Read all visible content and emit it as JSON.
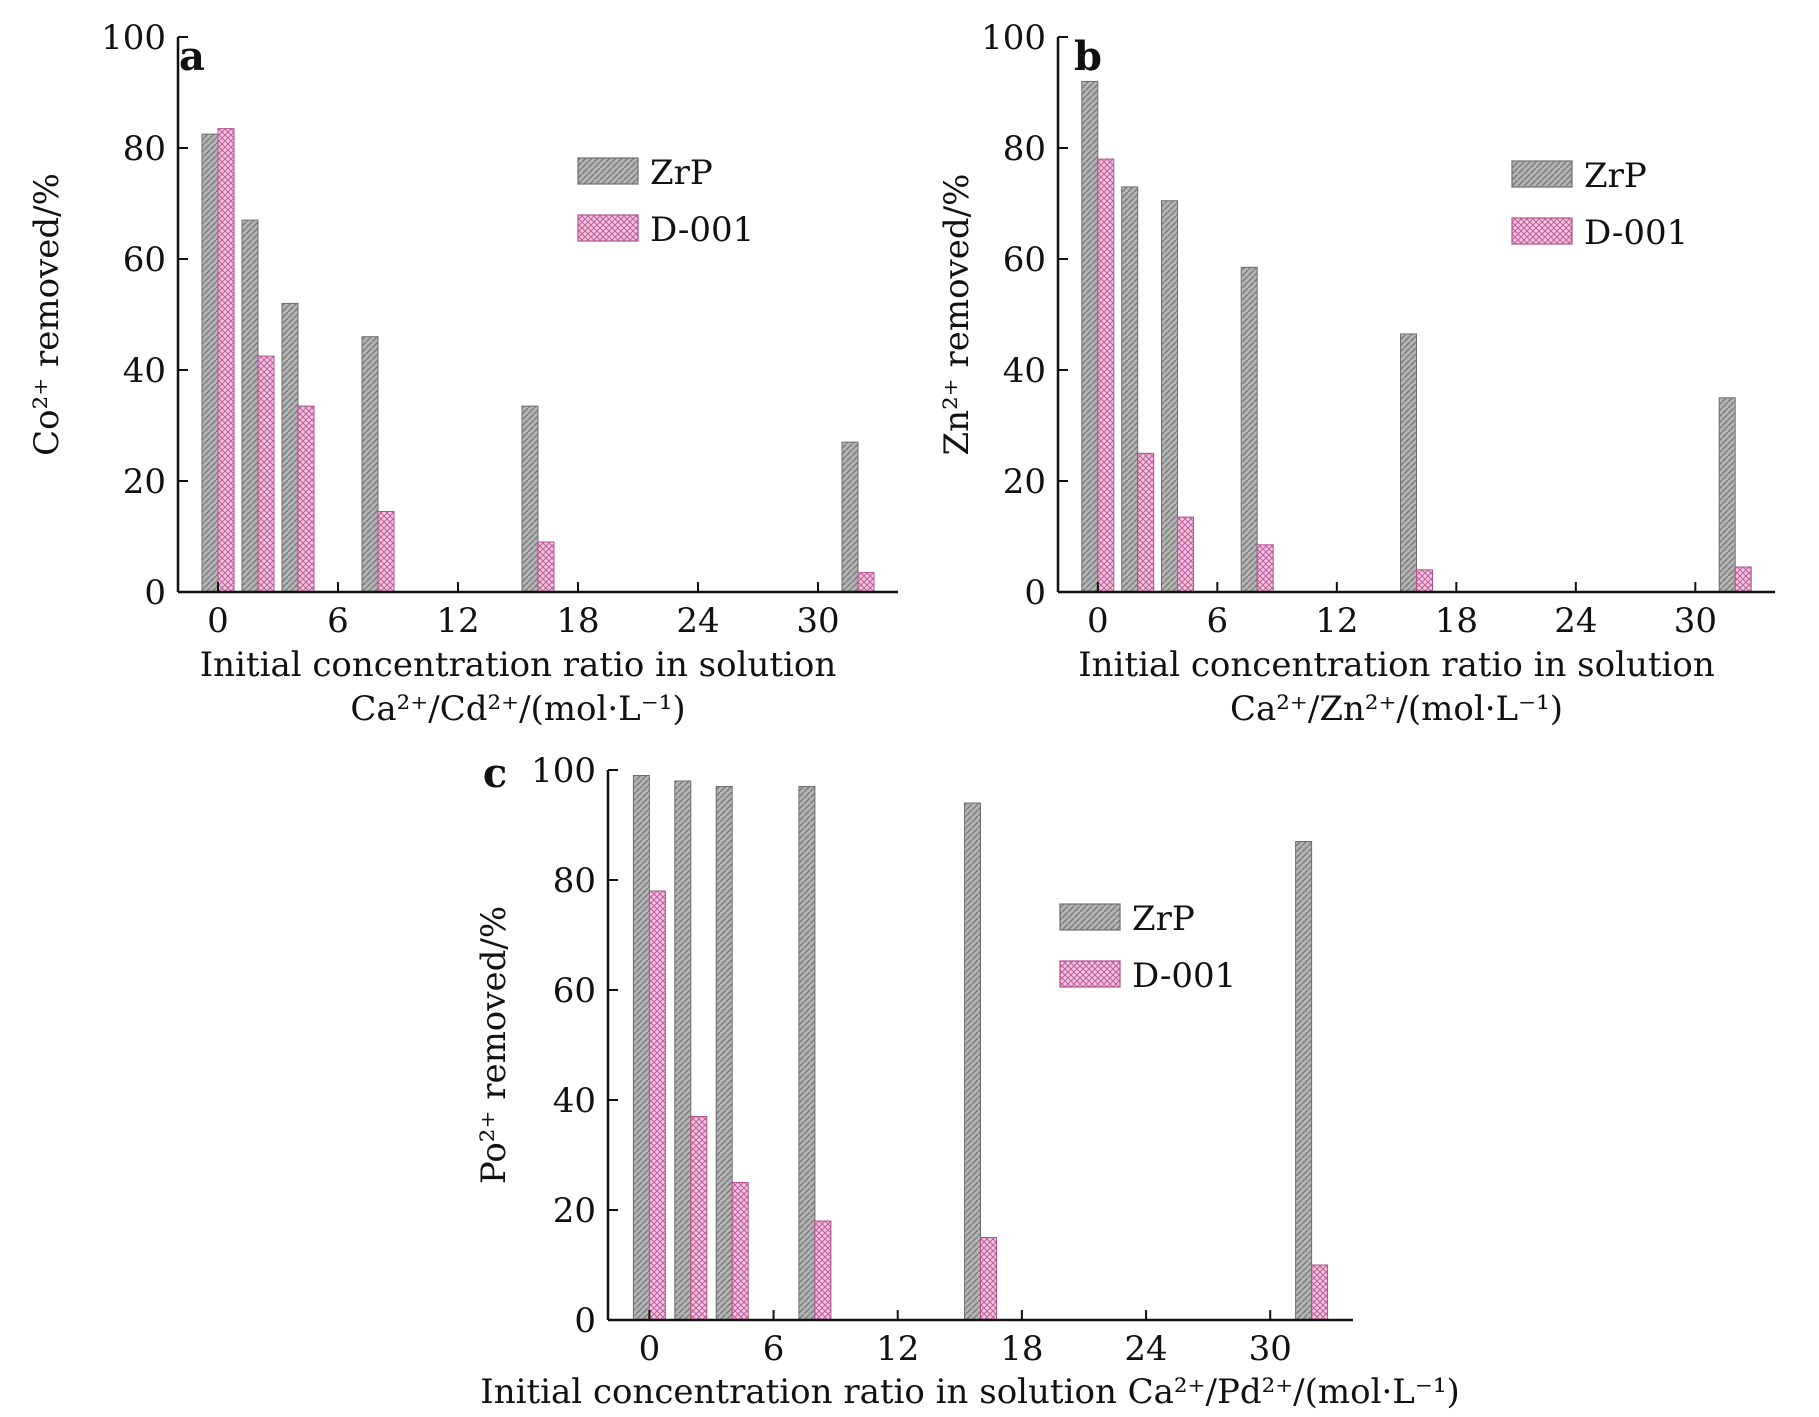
{
  "colors": {
    "zrp_fill": "#b4b4b4",
    "zrp_stroke": "#6e6e6e",
    "d001_fill": "#e9a8cf",
    "d001_stroke": "#b0508c",
    "axis": "#111111"
  },
  "chart_data": [
    {
      "type": "bar",
      "panel_label": "a",
      "x": [
        0,
        2,
        4,
        8,
        16,
        32
      ],
      "xticks": [
        0,
        6,
        12,
        18,
        24,
        30
      ],
      "xlim": [
        -2,
        34
      ],
      "ylim": [
        0,
        100
      ],
      "yticks": [
        0,
        20,
        40,
        60,
        80,
        100
      ],
      "ylabel": "Co²⁺ removed/%",
      "xlabel": "Initial concentration ratio in solution",
      "xlabel2": "Ca²⁺/Cd²⁺/(mol·L⁻¹)",
      "legend_position": "upper-right",
      "series": [
        {
          "name": "ZrP",
          "values": [
            82.5,
            67,
            52,
            46,
            33.5,
            27
          ]
        },
        {
          "name": "D-001",
          "values": [
            83.5,
            42.5,
            33.5,
            14.5,
            9,
            3.5
          ]
        }
      ]
    },
    {
      "type": "bar",
      "panel_label": "b",
      "x": [
        0,
        2,
        4,
        8,
        16,
        32
      ],
      "xticks": [
        0,
        6,
        12,
        18,
        24,
        30
      ],
      "xlim": [
        -2,
        34
      ],
      "ylim": [
        0,
        100
      ],
      "yticks": [
        0,
        20,
        40,
        60,
        80,
        100
      ],
      "ylabel": "Zn²⁺ removed/%",
      "xlabel": "Initial concentration ratio in solution",
      "xlabel2": "Ca²⁺/Zn²⁺/(mol·L⁻¹)",
      "legend_position": "upper-right",
      "series": [
        {
          "name": "ZrP",
          "values": [
            92,
            73,
            70.5,
            58.5,
            46.5,
            35
          ]
        },
        {
          "name": "D-001",
          "values": [
            78,
            25,
            13.5,
            8.5,
            4,
            4.5
          ]
        }
      ]
    },
    {
      "type": "bar",
      "panel_label": "c",
      "x": [
        0,
        2,
        4,
        8,
        16,
        32
      ],
      "xticks": [
        0,
        6,
        12,
        18,
        24,
        30
      ],
      "xlim": [
        -2,
        34
      ],
      "ylim": [
        0,
        100
      ],
      "yticks": [
        0,
        20,
        40,
        60,
        80,
        100
      ],
      "ylabel": "Po²⁺ removed/%",
      "xlabel": "Initial concentration ratio in solution Ca²⁺/Pd²⁺/(mol·L⁻¹)",
      "xlabel2": "",
      "legend_position": "upper-right",
      "series": [
        {
          "name": "ZrP",
          "values": [
            99,
            98,
            97,
            97,
            94,
            87
          ]
        },
        {
          "name": "D-001",
          "values": [
            78,
            37,
            25,
            18,
            15,
            10
          ]
        }
      ]
    }
  ]
}
